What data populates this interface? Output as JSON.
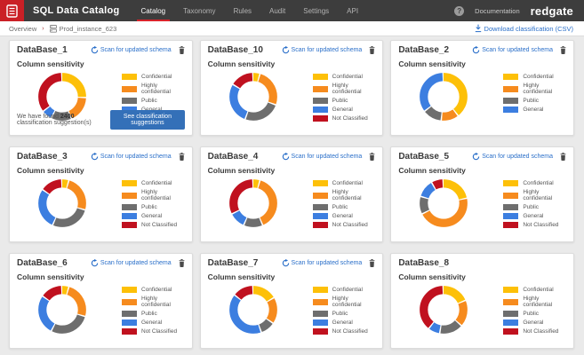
{
  "navbar": {
    "brand": "SQL Data Catalog",
    "items": [
      {
        "label": "Catalog",
        "active": true
      },
      {
        "label": "Taxonomy",
        "active": false
      },
      {
        "label": "Rules",
        "active": false
      },
      {
        "label": "Audit",
        "active": false
      },
      {
        "label": "Settings",
        "active": false
      },
      {
        "label": "API",
        "active": false
      }
    ],
    "help_glyph": "?",
    "documentation_label": "Documentation",
    "logo_text": "redgate"
  },
  "breadcrumb": {
    "root": "Overview",
    "separator": "›",
    "current": "Prod_instance_623"
  },
  "toolbar": {
    "download_label": "Download classification (CSV)"
  },
  "card_common": {
    "scan_label": "Scan for updated schema",
    "section_title": "Column sensitivity",
    "suggestion_button": "See classification suggestions"
  },
  "chart_data": {
    "type": "pie",
    "subtype": "donut",
    "title": "Column sensitivity",
    "legend_position": "right",
    "categories": [
      "Confidential",
      "Highly confidential",
      "Public",
      "General",
      "Not Classified"
    ],
    "colors": [
      "#fdc008",
      "#f68b1e",
      "#6e6e6e",
      "#3c7ee0",
      "#c0111f"
    ],
    "charts": [
      {
        "title": "DataBase_1",
        "values": [
          26,
          18,
          14,
          7,
          35
        ]
      },
      {
        "title": "DataBase_10",
        "values": [
          5,
          26,
          25,
          28,
          16
        ]
      },
      {
        "title": "DataBase_2",
        "values": [
          40,
          12,
          13,
          35,
          0
        ]
      },
      {
        "title": "DataBase_3",
        "values": [
          5,
          25,
          27,
          28,
          15
        ]
      },
      {
        "title": "DataBase_4",
        "values": [
          5,
          39,
          13,
          11,
          32
        ]
      },
      {
        "title": "DataBase_5",
        "values": [
          22,
          46,
          12,
          12,
          8
        ]
      },
      {
        "title": "DataBase_6",
        "values": [
          5,
          25,
          28,
          27,
          15
        ]
      },
      {
        "title": "DataBase_7",
        "values": [
          17,
          18,
          10,
          41,
          14
        ]
      },
      {
        "title": "DataBase_8",
        "values": [
          19,
          18,
          16,
          8,
          39
        ]
      }
    ]
  },
  "cards": [
    {
      "title": "DataBase_1",
      "has_scan": true,
      "suggestions": {
        "prefix": "We have found ",
        "count": "2400",
        "suffix": " classification suggestion(s)"
      }
    },
    {
      "title": "DataBase_10",
      "has_scan": true
    },
    {
      "title": "DataBase_2",
      "has_scan": true
    },
    {
      "title": "DataBase_3",
      "has_scan": true
    },
    {
      "title": "DataBase_4",
      "has_scan": true
    },
    {
      "title": "DataBase_5",
      "has_scan": true
    },
    {
      "title": "DataBase_6",
      "has_scan": true
    },
    {
      "title": "DataBase_7",
      "has_scan": true
    },
    {
      "title": "DataBase_8",
      "has_scan": false
    }
  ]
}
